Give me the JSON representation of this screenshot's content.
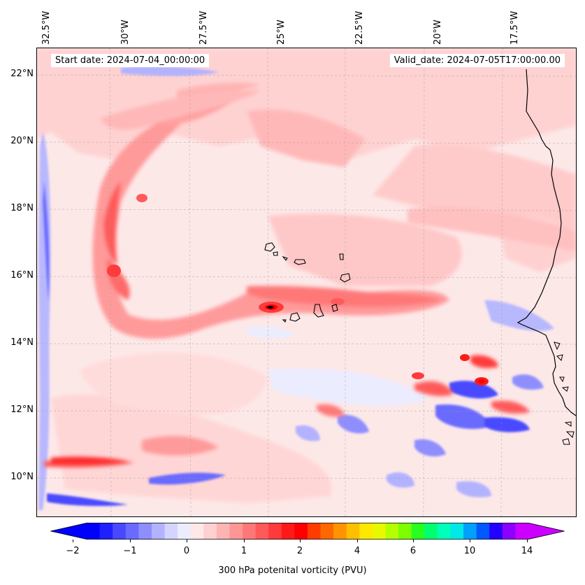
{
  "map": {
    "start_label": "Start date: 2024-07-04_00:00:00",
    "valid_label": "Valid_date: 2024-07-05T17:00:00.00",
    "lon_labels": [
      "32.5°W",
      "30°W",
      "27.5°W",
      "25°W",
      "22.5°W",
      "20°W",
      "17.5°W"
    ],
    "lat_labels": [
      "22°N",
      "20°N",
      "18°N",
      "16°N",
      "14°N",
      "12°N",
      "10°N"
    ],
    "extent": {
      "lon_min": -33.0,
      "lon_max": -15.5,
      "lat_min": 8.9,
      "lat_max": 22.8
    },
    "field": "300 hPa potenital vorticity",
    "features": [
      "west-african-coastline",
      "cape-verde-islands"
    ]
  },
  "colorbar": {
    "label": "300 hPa potenital vorticity (PVU)",
    "tick_labels": [
      "−2",
      "−1",
      "0",
      "1",
      "2",
      "4",
      "6",
      "10",
      "14"
    ],
    "colors": [
      "#0000ff",
      "#2020ff",
      "#4848ff",
      "#6a6aff",
      "#8e8eff",
      "#b2b2ff",
      "#d4d4ff",
      "#ececff",
      "#ffe8e8",
      "#ffd0d0",
      "#ffb4b4",
      "#ff9696",
      "#ff7878",
      "#ff5a5a",
      "#ff3a3a",
      "#ff1a1a",
      "#ff0000",
      "#ff3c00",
      "#ff6800",
      "#ff9400",
      "#ffbe00",
      "#ffe800",
      "#e8f800",
      "#b4ff00",
      "#7cff00",
      "#28ff20",
      "#00ff70",
      "#00ffb8",
      "#00e8e8",
      "#00a0ff",
      "#0058ff",
      "#2400ff",
      "#8c00ff",
      "#cc00ff"
    ],
    "extend_min_color": "#0000ff",
    "extend_max_color": "#cc00ff"
  }
}
